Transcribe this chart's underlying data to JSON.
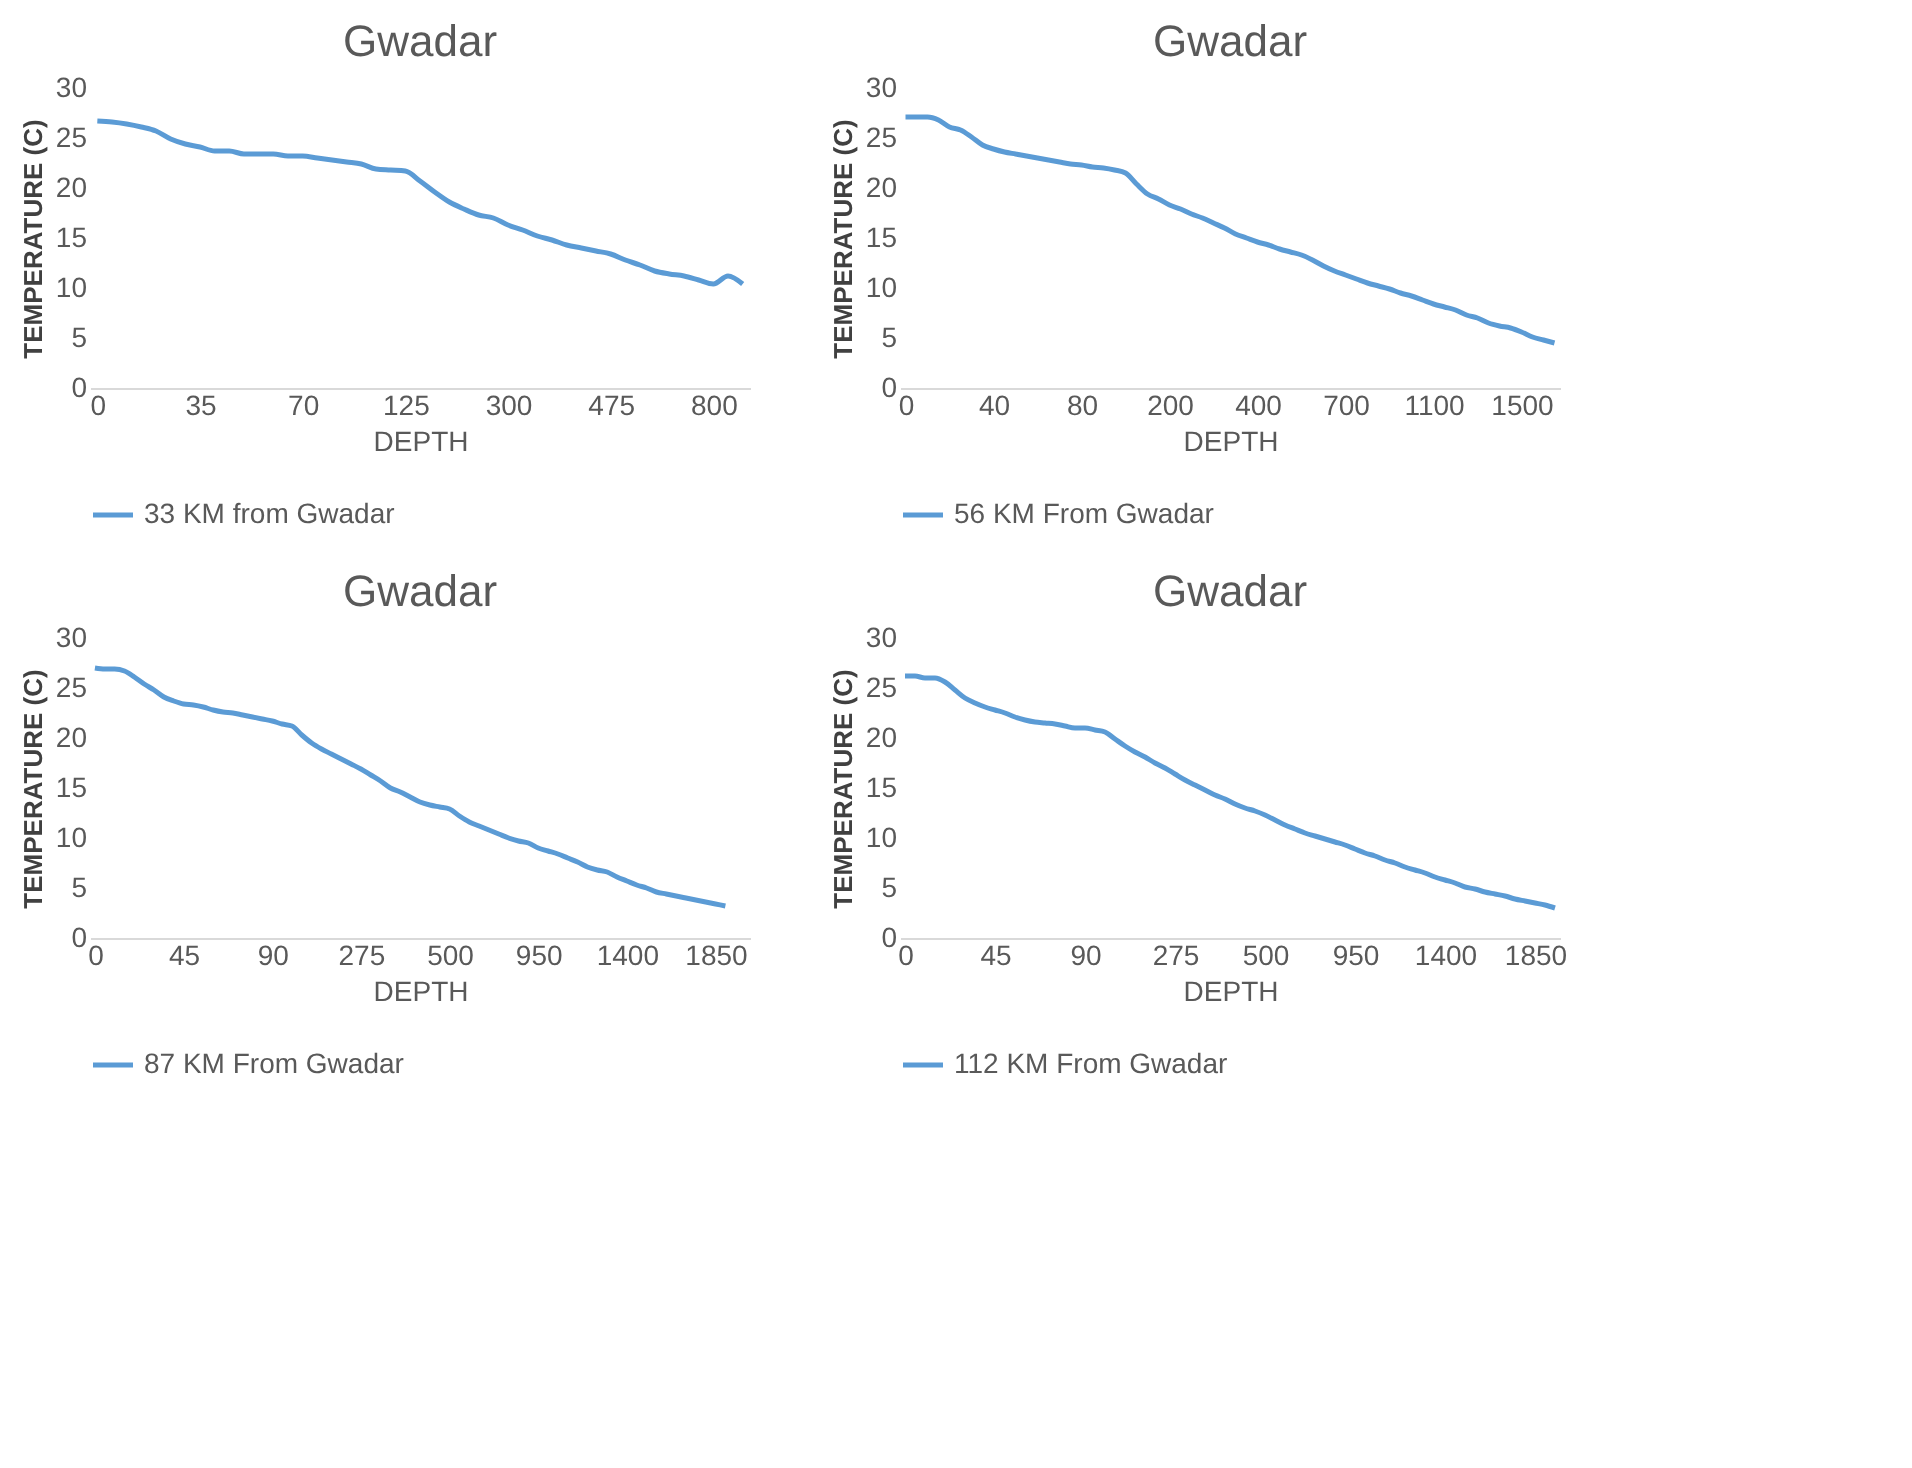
{
  "chart_data": [
    {
      "type": "line",
      "title": "Gwadar",
      "xlabel": "DEPTH",
      "ylabel": "TEMPERATURE (C)",
      "legend": "bottom",
      "ylim": [
        0,
        30
      ],
      "yticks": [
        0,
        5,
        10,
        15,
        20,
        25,
        30
      ],
      "grid": false,
      "categories": [
        "0",
        null,
        null,
        null,
        null,
        null,
        null,
        "35",
        null,
        null,
        null,
        null,
        null,
        null,
        "70",
        null,
        null,
        null,
        null,
        null,
        null,
        "125",
        null,
        null,
        null,
        null,
        null,
        null,
        "300",
        null,
        null,
        null,
        null,
        null,
        null,
        "475",
        null,
        null,
        null,
        null,
        null,
        null,
        "800",
        null,
        null
      ],
      "series": [
        {
          "name": "33 KM from Gwadar",
          "color": "#5b9bd5",
          "values": [
            26.7,
            26.6,
            26.4,
            26.1,
            25.7,
            24.9,
            24.4,
            24.1,
            23.7,
            23.7,
            23.4,
            23.4,
            23.4,
            23.2,
            23.2,
            23.0,
            22.8,
            22.6,
            22.4,
            21.9,
            21.8,
            21.7,
            20.7,
            19.6,
            18.6,
            17.9,
            17.3,
            17.0,
            16.3,
            15.8,
            15.2,
            14.8,
            14.3,
            14.0,
            13.7,
            13.4,
            12.8,
            12.3,
            11.7,
            11.4,
            11.2,
            10.8,
            10.4,
            11.2,
            10.4
          ]
        }
      ]
    },
    {
      "type": "line",
      "title": "Gwadar",
      "xlabel": "DEPTH",
      "ylabel": "TEMPERATURE (C)",
      "legend": "bottom",
      "ylim": [
        0,
        30
      ],
      "yticks": [
        0,
        5,
        10,
        15,
        20,
        25,
        30
      ],
      "grid": false,
      "categories": [
        "0",
        null,
        null,
        null,
        null,
        null,
        null,
        null,
        "40",
        null,
        null,
        null,
        null,
        null,
        null,
        null,
        "80",
        null,
        null,
        null,
        null,
        null,
        null,
        null,
        "200",
        null,
        null,
        null,
        null,
        null,
        null,
        null,
        "400",
        null,
        null,
        null,
        null,
        null,
        null,
        null,
        "700",
        null,
        null,
        null,
        null,
        null,
        null,
        null,
        "1100",
        null,
        null,
        null,
        null,
        null,
        null,
        null,
        "1500",
        null,
        null,
        null
      ],
      "series": [
        {
          "name": "56 KM From Gwadar",
          "color": "#5b9bd5",
          "values": [
            27.1,
            27.1,
            27.1,
            26.8,
            26.1,
            25.8,
            25.1,
            24.3,
            23.9,
            23.6,
            23.4,
            23.2,
            23.0,
            22.8,
            22.6,
            22.4,
            22.3,
            22.1,
            22.0,
            21.8,
            21.5,
            20.4,
            19.4,
            18.9,
            18.3,
            17.9,
            17.4,
            17.0,
            16.5,
            16.0,
            15.4,
            15.0,
            14.6,
            14.3,
            13.9,
            13.6,
            13.3,
            12.8,
            12.2,
            11.7,
            11.3,
            10.9,
            10.5,
            10.2,
            9.9,
            9.5,
            9.2,
            8.8,
            8.4,
            8.1,
            7.8,
            7.3,
            7.0,
            6.5,
            6.2,
            6.0,
            5.6,
            5.1,
            4.8,
            4.5
          ]
        }
      ]
    },
    {
      "type": "line",
      "title": "Gwadar",
      "xlabel": "DEPTH",
      "ylabel": "TEMPERATURE (C)",
      "legend": "bottom",
      "ylim": [
        0,
        30
      ],
      "yticks": [
        0,
        5,
        10,
        15,
        20,
        25,
        30
      ],
      "grid": false,
      "categories": [
        "0",
        null,
        null,
        null,
        null,
        null,
        null,
        null,
        null,
        "45",
        null,
        null,
        null,
        null,
        null,
        null,
        null,
        null,
        "90",
        null,
        null,
        null,
        null,
        null,
        null,
        null,
        null,
        "275",
        null,
        null,
        null,
        null,
        null,
        null,
        null,
        null,
        "500",
        null,
        null,
        null,
        null,
        null,
        null,
        null,
        null,
        "950",
        null,
        null,
        null,
        null,
        null,
        null,
        null,
        null,
        "1400",
        null,
        null,
        null,
        null,
        null,
        null,
        null,
        null,
        "1850",
        null,
        null,
        null
      ],
      "series": [
        {
          "name": "87 KM From Gwadar",
          "color": "#5b9bd5",
          "values": [
            27.0,
            26.9,
            26.9,
            26.7,
            26.1,
            25.4,
            24.8,
            24.1,
            23.7,
            23.4,
            23.3,
            23.1,
            22.8,
            22.6,
            22.5,
            22.3,
            22.1,
            21.9,
            21.7,
            21.4,
            21.2,
            20.3,
            19.5,
            18.9,
            18.4,
            17.9,
            17.4,
            16.9,
            16.3,
            15.7,
            15.0,
            14.6,
            14.1,
            13.6,
            13.3,
            13.1,
            12.9,
            12.2,
            11.6,
            11.2,
            10.8,
            10.4,
            10.0,
            9.7,
            9.5,
            9.0,
            8.7,
            8.4,
            8.0,
            7.6,
            7.1,
            6.8,
            6.6,
            6.1,
            5.7,
            5.3,
            5.0,
            4.6,
            4.4,
            4.2,
            4.0,
            3.8,
            3.6,
            3.4,
            3.2,
            null,
            null
          ]
        }
      ]
    },
    {
      "type": "line",
      "title": "Gwadar",
      "xlabel": "DEPTH",
      "ylabel": "TEMPERATURE (C)",
      "legend": "bottom",
      "ylim": [
        0,
        30
      ],
      "yticks": [
        0,
        5,
        10,
        15,
        20,
        25,
        30
      ],
      "grid": false,
      "categories": [
        "0",
        null,
        null,
        null,
        null,
        null,
        null,
        null,
        null,
        "45",
        null,
        null,
        null,
        null,
        null,
        null,
        null,
        null,
        "90",
        null,
        null,
        null,
        null,
        null,
        null,
        null,
        null,
        "275",
        null,
        null,
        null,
        null,
        null,
        null,
        null,
        null,
        "500",
        null,
        null,
        null,
        null,
        null,
        null,
        null,
        null,
        "950",
        null,
        null,
        null,
        null,
        null,
        null,
        null,
        null,
        "1400",
        null,
        null,
        null,
        null,
        null,
        null,
        null,
        null,
        "1850",
        null,
        null
      ],
      "series": [
        {
          "name": "112 KM From Gwadar",
          "color": "#5b9bd5",
          "values": [
            26.2,
            26.2,
            26.0,
            26.0,
            25.6,
            24.8,
            24.0,
            23.5,
            23.1,
            22.8,
            22.5,
            22.1,
            21.8,
            21.6,
            21.5,
            21.4,
            21.2,
            21.0,
            21.0,
            20.8,
            20.6,
            19.9,
            19.2,
            18.6,
            18.1,
            17.5,
            17.0,
            16.4,
            15.8,
            15.3,
            14.8,
            14.3,
            13.9,
            13.4,
            13.0,
            12.7,
            12.3,
            11.8,
            11.3,
            10.9,
            10.5,
            10.2,
            9.9,
            9.6,
            9.3,
            8.9,
            8.5,
            8.2,
            7.8,
            7.5,
            7.1,
            6.8,
            6.5,
            6.1,
            5.8,
            5.5,
            5.1,
            4.9,
            4.6,
            4.4,
            4.2,
            3.9,
            3.7,
            3.5,
            3.3,
            3.0
          ]
        }
      ]
    }
  ]
}
